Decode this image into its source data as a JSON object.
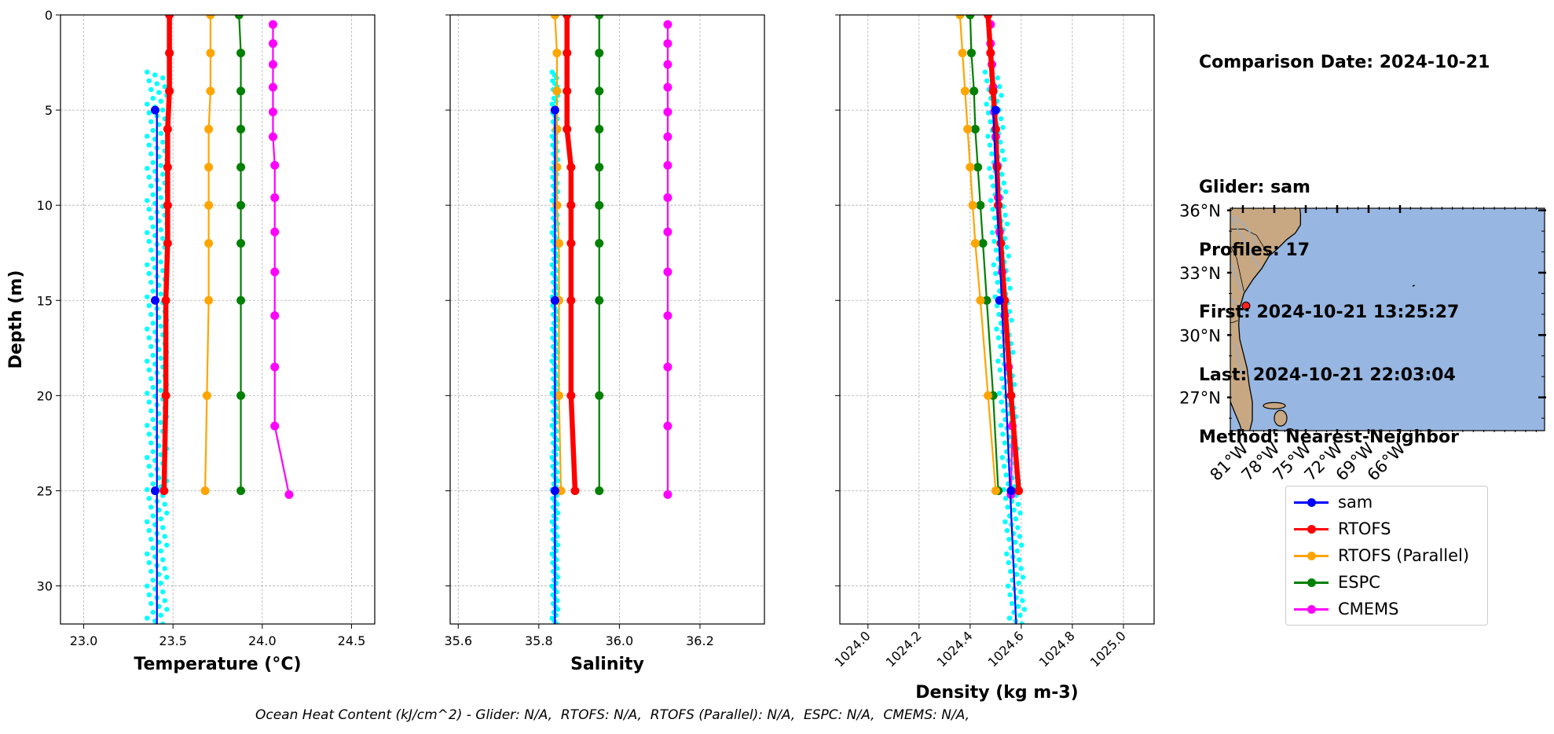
{
  "info": {
    "lines": [
      "Comparison Date: 2024-10-21",
      "",
      "Glider: sam",
      "Profiles: 17",
      "First: 2024-10-21 13:25:27",
      "Last: 2024-10-21 22:03:04",
      "Method: Nearest-Neighbor"
    ]
  },
  "footer": "Ocean Heat Content (kJ/cm^2) - Glider: N/A,  RTOFS: N/A,  RTOFS (Parallel): N/A,  ESPC: N/A,  CMEMS: N/A,",
  "legend": [
    {
      "label": "sam",
      "color": "#0000ff"
    },
    {
      "label": "RTOFS",
      "color": "#ff0000"
    },
    {
      "label": "RTOFS (Parallel)",
      "color": "#ffa500"
    },
    {
      "label": "ESPC",
      "color": "#008000"
    },
    {
      "label": "CMEMS",
      "color": "#ff00ff"
    }
  ],
  "colors": {
    "glider_scatter": "#00ffff",
    "land": "#c8a882",
    "ocean": "#97b6e1",
    "grid": "#b0b0b0"
  },
  "chart_data": [
    {
      "type": "line",
      "xlabel": "Temperature (°C)",
      "ylabel": "Depth (m)",
      "xlim": [
        22.87,
        24.63
      ],
      "ylim": [
        32,
        0
      ],
      "xticks": [
        "23.0",
        "23.5",
        "24.0",
        "24.5"
      ],
      "yticks": [
        "0",
        "5",
        "10",
        "15",
        "20",
        "25",
        "30"
      ],
      "grid": true,
      "series": [
        {
          "name": "sam",
          "x": [
            23.4,
            23.4,
            23.4
          ],
          "y": [
            5,
            15,
            25
          ],
          "line_x": [
            23.41,
            23.41
          ],
          "line_y": [
            5,
            32
          ]
        },
        {
          "name": "RTOFS",
          "x": [
            23.48,
            23.48,
            23.48,
            23.47,
            23.47,
            23.47,
            23.47,
            23.46,
            23.46,
            23.45
          ],
          "y": [
            0,
            2,
            4,
            6,
            8,
            10,
            12,
            15,
            20,
            25
          ]
        },
        {
          "name": "RTOFS (Parallel)",
          "x": [
            23.71,
            23.71,
            23.71,
            23.7,
            23.7,
            23.7,
            23.7,
            23.7,
            23.69,
            23.68
          ],
          "y": [
            0,
            2,
            4,
            6,
            8,
            10,
            12,
            15,
            20,
            25
          ]
        },
        {
          "name": "ESPC",
          "x": [
            23.87,
            23.88,
            23.88,
            23.88,
            23.88,
            23.88,
            23.88,
            23.88,
            23.88,
            23.88
          ],
          "y": [
            0,
            2,
            4,
            6,
            8,
            10,
            12,
            15,
            20,
            25
          ]
        },
        {
          "name": "CMEMS",
          "x": [
            24.06,
            24.06,
            24.06,
            24.06,
            24.06,
            24.06,
            24.07,
            24.07,
            24.07,
            24.07,
            24.07,
            24.07,
            24.07,
            24.15
          ],
          "y": [
            0.5,
            1.5,
            2.6,
            3.8,
            5.1,
            6.4,
            7.9,
            9.6,
            11.4,
            13.5,
            15.8,
            18.5,
            21.6,
            25.2
          ]
        }
      ],
      "scatter": {
        "name": "sam profiles",
        "x_range": [
          23.33,
          23.44
        ],
        "y_range": [
          3,
          32
        ]
      }
    },
    {
      "type": "line",
      "xlabel": "Salinity",
      "ylabel": "",
      "xlim": [
        35.58,
        36.36
      ],
      "ylim": [
        32,
        0
      ],
      "xticks": [
        "35.6",
        "35.8",
        "36.0",
        "36.2"
      ],
      "grid": true,
      "series": [
        {
          "name": "sam",
          "x": [
            35.84,
            35.84,
            35.84
          ],
          "y": [
            5,
            15,
            25
          ],
          "line_x": [
            35.84,
            35.84
          ],
          "line_y": [
            5,
            32
          ]
        },
        {
          "name": "RTOFS",
          "x": [
            35.87,
            35.87,
            35.87,
            35.87,
            35.88,
            35.88,
            35.88,
            35.88,
            35.88,
            35.89
          ],
          "y": [
            0,
            2,
            4,
            6,
            8,
            10,
            12,
            15,
            20,
            25
          ]
        },
        {
          "name": "RTOFS (Parallel)",
          "x": [
            35.84,
            35.845,
            35.845,
            35.845,
            35.845,
            35.845,
            35.85,
            35.85,
            35.85,
            35.855
          ],
          "y": [
            0,
            2,
            4,
            6,
            8,
            10,
            12,
            15,
            20,
            25
          ]
        },
        {
          "name": "ESPC",
          "x": [
            35.95,
            35.95,
            35.95,
            35.95,
            35.95,
            35.95,
            35.95,
            35.95,
            35.95,
            35.95
          ],
          "y": [
            0,
            2,
            4,
            6,
            8,
            10,
            12,
            15,
            20,
            25
          ]
        },
        {
          "name": "CMEMS",
          "x": [
            36.12,
            36.12,
            36.12,
            36.12,
            36.12,
            36.12,
            36.12,
            36.12,
            36.12,
            36.12,
            36.12,
            36.12,
            36.12,
            36.12
          ],
          "y": [
            0.5,
            1.5,
            2.6,
            3.8,
            5.1,
            6.4,
            7.9,
            9.6,
            11.4,
            13.5,
            15.8,
            18.5,
            21.6,
            25.2
          ]
        }
      ],
      "scatter": {
        "name": "sam profiles",
        "x_range": [
          35.833,
          35.847
        ],
        "y_range": [
          3,
          32
        ]
      }
    },
    {
      "type": "line",
      "xlabel": "Density (kg m-3)",
      "ylabel": "",
      "xlim": [
        1023.89,
        1025.12
      ],
      "ylim": [
        32,
        0
      ],
      "xticks": [
        "1024.0",
        "1024.2",
        "1024.4",
        "1024.6",
        "1024.8",
        "1025.0"
      ],
      "grid": true,
      "series": [
        {
          "name": "sam",
          "x": [
            1024.5,
            1024.515,
            1024.56
          ],
          "y": [
            5,
            15,
            25
          ],
          "line_x": [
            1024.49,
            1024.58
          ],
          "line_y": [
            5,
            32
          ]
        },
        {
          "name": "RTOFS",
          "x": [
            1024.47,
            1024.48,
            1024.49,
            1024.5,
            1024.505,
            1024.51,
            1024.52,
            1024.535,
            1024.56,
            1024.59
          ],
          "y": [
            0,
            2,
            4,
            6,
            8,
            10,
            12,
            15,
            20,
            25
          ]
        },
        {
          "name": "RTOFS (Parallel)",
          "x": [
            1024.36,
            1024.37,
            1024.38,
            1024.39,
            1024.4,
            1024.41,
            1024.42,
            1024.44,
            1024.47,
            1024.5
          ],
          "y": [
            0,
            2,
            4,
            6,
            8,
            10,
            12,
            15,
            20,
            25
          ]
        },
        {
          "name": "ESPC",
          "x": [
            1024.4,
            1024.405,
            1024.415,
            1024.42,
            1024.43,
            1024.44,
            1024.45,
            1024.465,
            1024.49,
            1024.51
          ],
          "y": [
            0,
            2,
            4,
            6,
            8,
            10,
            12,
            15,
            20,
            25
          ]
        },
        {
          "name": "CMEMS",
          "x": [
            1024.48,
            1024.48,
            1024.485,
            1024.49,
            1024.495,
            1024.5,
            1024.505,
            1024.51,
            1024.515,
            1024.525,
            1024.535,
            1024.55,
            1024.565,
            1024.56
          ],
          "y": [
            0.5,
            1.5,
            2.6,
            3.8,
            5.1,
            6.4,
            7.9,
            9.6,
            11.4,
            13.5,
            15.8,
            18.5,
            21.6,
            25.2
          ]
        }
      ],
      "scatter": {
        "name": "sam profiles",
        "x_range": [
          1024.5,
          1024.6
        ],
        "y_range": [
          3,
          32
        ]
      }
    }
  ],
  "map": {
    "lat_labels": [
      "36°N",
      "33°N",
      "30°N",
      "27°N"
    ],
    "lon_labels": [
      "81°W",
      "78°W",
      "75°W",
      "72°W",
      "69°W",
      "66°W"
    ],
    "lat_values": [
      36,
      33,
      30,
      27
    ],
    "lon_values": [
      -81,
      -78,
      -75,
      -72,
      -69,
      -66
    ],
    "extent": {
      "lon": [
        -82.2,
        -52.2
      ],
      "lat": [
        25.4,
        36.1
      ]
    },
    "glider_position": {
      "lon": -80.7,
      "lat": 31.4
    }
  }
}
